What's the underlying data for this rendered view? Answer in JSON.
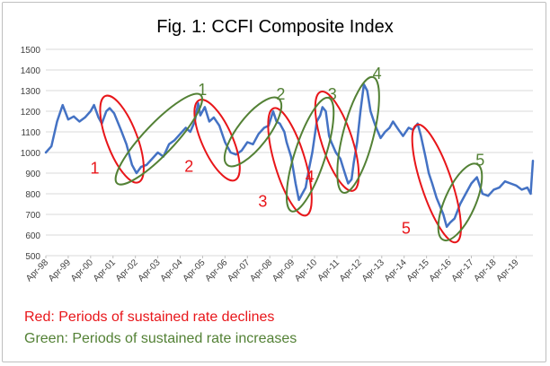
{
  "chart_data": {
    "type": "line",
    "title": "Fig. 1: CCFI Composite Index",
    "xlabel": "",
    "ylabel": "",
    "ylim": [
      500,
      1500
    ],
    "yticks": [
      500,
      600,
      700,
      800,
      900,
      1000,
      1100,
      1200,
      1300,
      1400,
      1500
    ],
    "grid": true,
    "x_range": [
      1998.25,
      2020.0
    ],
    "x_ticks": [
      {
        "label": "Apr-98",
        "t": 1998.25
      },
      {
        "label": "Apr-99",
        "t": 1999.25
      },
      {
        "label": "Apr-00",
        "t": 2000.25
      },
      {
        "label": "Apr-01",
        "t": 2001.25
      },
      {
        "label": "Apr-02",
        "t": 2002.25
      },
      {
        "label": "Apr-03",
        "t": 2003.25
      },
      {
        "label": "Apr-04",
        "t": 2004.25
      },
      {
        "label": "Apr-05",
        "t": 2005.25
      },
      {
        "label": "Apr-06",
        "t": 2006.25
      },
      {
        "label": "Apr-07",
        "t": 2007.25
      },
      {
        "label": "Apr-08",
        "t": 2008.25
      },
      {
        "label": "Apr-09",
        "t": 2009.25
      },
      {
        "label": "Apr-10",
        "t": 2010.25
      },
      {
        "label": "Apr-11",
        "t": 2011.25
      },
      {
        "label": "Apr-12",
        "t": 2012.25
      },
      {
        "label": "Apr-13",
        "t": 2013.25
      },
      {
        "label": "Apr-14",
        "t": 2014.25
      },
      {
        "label": "Apr-15",
        "t": 2015.25
      },
      {
        "label": "Apr-16",
        "t": 2016.25
      },
      {
        "label": "Apr-17",
        "t": 2017.25
      },
      {
        "label": "Apr-18",
        "t": 2018.25
      },
      {
        "label": "Apr-19",
        "t": 2019.25
      }
    ],
    "series": [
      {
        "name": "CCFI Composite Index",
        "color": "#4472C4",
        "points": [
          [
            1998.25,
            1000
          ],
          [
            1998.5,
            1030
          ],
          [
            1998.75,
            1150
          ],
          [
            1999.0,
            1230
          ],
          [
            1999.25,
            1160
          ],
          [
            1999.5,
            1175
          ],
          [
            1999.75,
            1150
          ],
          [
            2000.0,
            1170
          ],
          [
            2000.25,
            1200
          ],
          [
            2000.4,
            1230
          ],
          [
            2000.6,
            1170
          ],
          [
            2000.75,
            1140
          ],
          [
            2000.95,
            1200
          ],
          [
            2001.1,
            1215
          ],
          [
            2001.3,
            1190
          ],
          [
            2001.6,
            1110
          ],
          [
            2001.85,
            1040
          ],
          [
            2002.1,
            940
          ],
          [
            2002.3,
            900
          ],
          [
            2002.5,
            930
          ],
          [
            2002.75,
            940
          ],
          [
            2003.0,
            970
          ],
          [
            2003.25,
            1000
          ],
          [
            2003.5,
            980
          ],
          [
            2003.75,
            1040
          ],
          [
            2004.0,
            1060
          ],
          [
            2004.25,
            1090
          ],
          [
            2004.5,
            1120
          ],
          [
            2004.7,
            1100
          ],
          [
            2004.9,
            1150
          ],
          [
            2005.05,
            1240
          ],
          [
            2005.15,
            1180
          ],
          [
            2005.35,
            1220
          ],
          [
            2005.55,
            1150
          ],
          [
            2005.75,
            1170
          ],
          [
            2006.0,
            1130
          ],
          [
            2006.25,
            1050
          ],
          [
            2006.5,
            1000
          ],
          [
            2006.75,
            990
          ],
          [
            2007.0,
            1010
          ],
          [
            2007.25,
            1050
          ],
          [
            2007.5,
            1040
          ],
          [
            2007.75,
            1090
          ],
          [
            2008.0,
            1120
          ],
          [
            2008.2,
            1130
          ],
          [
            2008.4,
            1200
          ],
          [
            2008.55,
            1150
          ],
          [
            2008.7,
            1140
          ],
          [
            2008.9,
            1100
          ],
          [
            2009.0,
            1050
          ],
          [
            2009.2,
            980
          ],
          [
            2009.4,
            850
          ],
          [
            2009.55,
            770
          ],
          [
            2009.7,
            800
          ],
          [
            2009.85,
            830
          ],
          [
            2010.0,
            920
          ],
          [
            2010.15,
            1000
          ],
          [
            2010.35,
            1150
          ],
          [
            2010.5,
            1180
          ],
          [
            2010.6,
            1220
          ],
          [
            2010.75,
            1200
          ],
          [
            2010.9,
            1080
          ],
          [
            2011.0,
            1050
          ],
          [
            2011.2,
            1000
          ],
          [
            2011.4,
            970
          ],
          [
            2011.6,
            900
          ],
          [
            2011.75,
            850
          ],
          [
            2011.9,
            870
          ],
          [
            2012.0,
            950
          ],
          [
            2012.15,
            1050
          ],
          [
            2012.3,
            1200
          ],
          [
            2012.45,
            1330
          ],
          [
            2012.6,
            1300
          ],
          [
            2012.75,
            1200
          ],
          [
            2012.9,
            1150
          ],
          [
            2013.0,
            1120
          ],
          [
            2013.2,
            1070
          ],
          [
            2013.4,
            1100
          ],
          [
            2013.6,
            1120
          ],
          [
            2013.75,
            1150
          ],
          [
            2014.0,
            1110
          ],
          [
            2014.2,
            1080
          ],
          [
            2014.45,
            1120
          ],
          [
            2014.65,
            1110
          ],
          [
            2014.85,
            1140
          ],
          [
            2015.0,
            1080
          ],
          [
            2015.2,
            980
          ],
          [
            2015.35,
            900
          ],
          [
            2015.5,
            850
          ],
          [
            2015.7,
            780
          ],
          [
            2015.85,
            740
          ],
          [
            2016.0,
            700
          ],
          [
            2016.15,
            640
          ],
          [
            2016.3,
            660
          ],
          [
            2016.5,
            680
          ],
          [
            2016.75,
            750
          ],
          [
            2017.0,
            800
          ],
          [
            2017.25,
            850
          ],
          [
            2017.5,
            880
          ],
          [
            2017.75,
            800
          ],
          [
            2018.0,
            790
          ],
          [
            2018.25,
            820
          ],
          [
            2018.5,
            830
          ],
          [
            2018.75,
            860
          ],
          [
            2019.0,
            850
          ],
          [
            2019.25,
            840
          ],
          [
            2019.5,
            820
          ],
          [
            2019.75,
            830
          ],
          [
            2019.9,
            800
          ],
          [
            2020.0,
            960
          ]
        ]
      }
    ],
    "annotations": [
      {
        "label": "1",
        "type": "decline",
        "color": "#E8161A",
        "from": 2001.0,
        "to": 2002.3,
        "low": 880,
        "high": 1250
      },
      {
        "label": "2",
        "type": "decline",
        "color": "#E8161A",
        "from": 2005.2,
        "to": 2006.6,
        "low": 890,
        "high": 1230
      },
      {
        "label": "3",
        "type": "decline",
        "color": "#E8161A",
        "from": 2008.5,
        "to": 2009.8,
        "low": 720,
        "high": 1190
      },
      {
        "label": "4",
        "type": "decline",
        "color": "#E8161A",
        "from": 2010.6,
        "to": 2011.9,
        "low": 840,
        "high": 1270
      },
      {
        "label": "5",
        "type": "decline",
        "color": "#E8161A",
        "from": 2014.9,
        "to": 2016.5,
        "low": 590,
        "high": 1110
      },
      {
        "label": "1",
        "type": "increase",
        "color": "#538135",
        "from": 2001.6,
        "to": 2005.0,
        "low": 870,
        "high": 1260
      },
      {
        "label": "2",
        "type": "increase",
        "color": "#538135",
        "from": 2006.5,
        "to": 2008.5,
        "low": 960,
        "high": 1240
      },
      {
        "label": "3",
        "type": "increase",
        "color": "#538135",
        "from": 2009.3,
        "to": 2010.8,
        "low": 740,
        "high": 1240
      },
      {
        "label": "4",
        "type": "increase",
        "color": "#538135",
        "from": 2011.6,
        "to": 2012.8,
        "low": 830,
        "high": 1340
      },
      {
        "label": "5",
        "type": "increase",
        "color": "#538135",
        "from": 2016.1,
        "to": 2017.4,
        "low": 600,
        "high": 920
      }
    ]
  },
  "notes": {
    "red": "Red: Periods of sustained rate declines",
    "green": "Green: Periods of sustained rate increases"
  },
  "colors": {
    "red": "#E8161A",
    "green": "#538135",
    "line": "#4472C4"
  }
}
